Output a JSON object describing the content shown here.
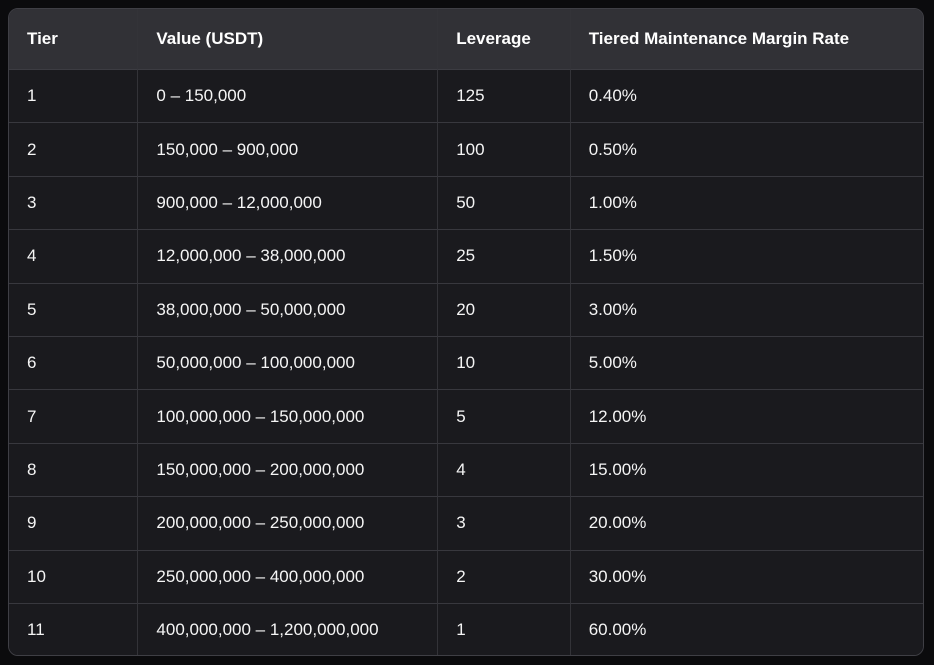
{
  "page": {
    "background_color": "#0b0b0d"
  },
  "table": {
    "colors": {
      "header_bg": "#313136",
      "row_bg": "#1a1a1e",
      "horizontal_border": "#38383e",
      "vertical_border": "#333338",
      "outer_border": "#3f3f45",
      "text": "#f5f5f5",
      "header_text": "#ffffff"
    },
    "headers": {
      "tier": "Tier",
      "value": "Value (USDT)",
      "leverage": "Leverage",
      "rate": "Tiered Maintenance Margin Rate"
    },
    "rows": [
      {
        "tier": "1",
        "value": "0 – 150,000",
        "leverage": "125",
        "rate": "0.40%"
      },
      {
        "tier": "2",
        "value": "150,000 – 900,000",
        "leverage": "100",
        "rate": "0.50%"
      },
      {
        "tier": "3",
        "value": "900,000 – 12,000,000",
        "leverage": "50",
        "rate": "1.00%"
      },
      {
        "tier": "4",
        "value": "12,000,000 – 38,000,000",
        "leverage": "25",
        "rate": "1.50%"
      },
      {
        "tier": "5",
        "value": "38,000,000 – 50,000,000",
        "leverage": "20",
        "rate": "3.00%"
      },
      {
        "tier": "6",
        "value": "50,000,000 – 100,000,000",
        "leverage": "10",
        "rate": "5.00%"
      },
      {
        "tier": "7",
        "value": "100,000,000 – 150,000,000",
        "leverage": "5",
        "rate": "12.00%"
      },
      {
        "tier": "8",
        "value": "150,000,000 – 200,000,000",
        "leverage": "4",
        "rate": "15.00%"
      },
      {
        "tier": "9",
        "value": "200,000,000 – 250,000,000",
        "leverage": "3",
        "rate": "20.00%"
      },
      {
        "tier": "10",
        "value": "250,000,000 – 400,000,000",
        "leverage": "2",
        "rate": "30.00%"
      },
      {
        "tier": "11",
        "value": "400,000,000 – 1,200,000,000",
        "leverage": "1",
        "rate": "60.00%"
      }
    ]
  }
}
